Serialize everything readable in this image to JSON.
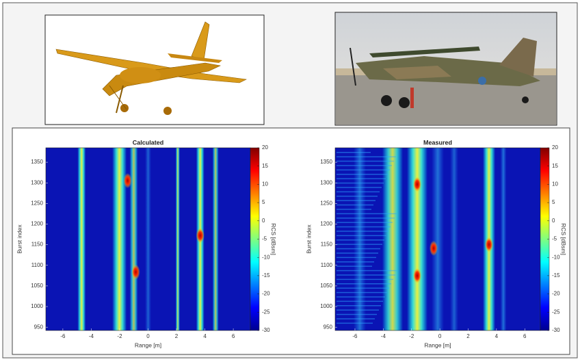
{
  "chart_data": [
    {
      "type": "heatmap",
      "title": "Calculated",
      "xlabel": "Range [m]",
      "ylabel": "Burst index",
      "colorbar_label": "RCS [dBsm]",
      "xlim": [
        -7.2,
        7.2
      ],
      "xticks": [
        -6,
        -4,
        -2,
        0,
        2,
        4,
        6
      ],
      "ylim": [
        942,
        1385
      ],
      "yticks": [
        950,
        1000,
        1050,
        1100,
        1150,
        1200,
        1250,
        1300,
        1350
      ],
      "clim": [
        -30,
        20
      ],
      "cticks": [
        -30,
        -25,
        -20,
        -15,
        -10,
        -5,
        0,
        5,
        10,
        15,
        20
      ]
    },
    {
      "type": "heatmap",
      "title": "Measured",
      "xlabel": "Range [m]",
      "ylabel": "Burst index",
      "colorbar_label": "RCS [dBsm]",
      "xlim": [
        -7.4,
        7.1
      ],
      "xticks": [
        -6,
        -4,
        -2,
        0,
        2,
        4,
        6
      ],
      "ylim": [
        942,
        1385
      ],
      "yticks": [
        950,
        1000,
        1050,
        1100,
        1150,
        1200,
        1250,
        1300,
        1350
      ],
      "clim": [
        -30,
        20
      ],
      "cticks": [
        -30,
        -25,
        -20,
        -15,
        -10,
        -5,
        0,
        5,
        10,
        15,
        20
      ]
    }
  ]
}
